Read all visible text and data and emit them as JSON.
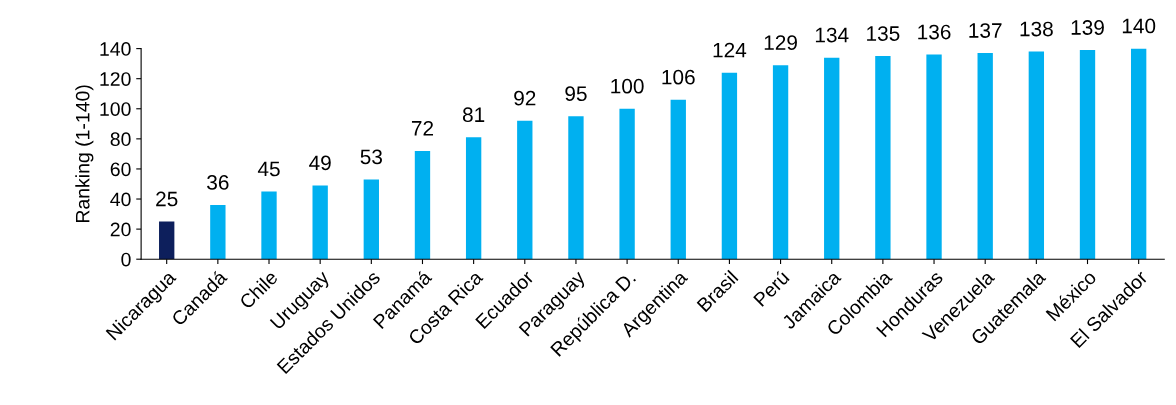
{
  "chart_data": {
    "type": "bar",
    "ylabel": "Ranking (1-140)",
    "categories": [
      "Nicaragua",
      "Canadá",
      "Chile",
      "Uruguay",
      "Estados Unidos",
      "Panamá",
      "Costa Rica",
      "Ecuador",
      "Paraguay",
      "República D.",
      "Argentina",
      "Brasil",
      "Perú",
      "Jamaica",
      "Colombia",
      "Honduras",
      "Venezuela",
      "Guatemala",
      "México",
      "El Salvador"
    ],
    "values": [
      25,
      36,
      45,
      49,
      53,
      72,
      81,
      92,
      95,
      100,
      106,
      124,
      129,
      134,
      135,
      136,
      137,
      138,
      139,
      140
    ],
    "colors": [
      "#0d1f5c",
      "#00b0f0",
      "#00b0f0",
      "#00b0f0",
      "#00b0f0",
      "#00b0f0",
      "#00b0f0",
      "#00b0f0",
      "#00b0f0",
      "#00b0f0",
      "#00b0f0",
      "#00b0f0",
      "#00b0f0",
      "#00b0f0",
      "#00b0f0",
      "#00b0f0",
      "#00b0f0",
      "#00b0f0",
      "#00b0f0",
      "#00b0f0"
    ],
    "ylim": [
      0,
      140
    ],
    "yticks": [
      0,
      20,
      40,
      60,
      80,
      100,
      120,
      140
    ],
    "data_labels": true,
    "grid": false
  }
}
